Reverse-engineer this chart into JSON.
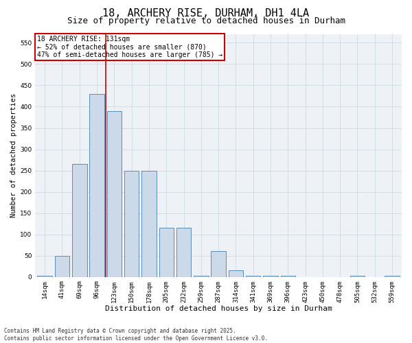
{
  "title": "18, ARCHERY RISE, DURHAM, DH1 4LA",
  "subtitle": "Size of property relative to detached houses in Durham",
  "xlabel": "Distribution of detached houses by size in Durham",
  "ylabel": "Number of detached properties",
  "bar_labels": [
    "14sqm",
    "41sqm",
    "69sqm",
    "96sqm",
    "123sqm",
    "150sqm",
    "178sqm",
    "205sqm",
    "232sqm",
    "259sqm",
    "287sqm",
    "314sqm",
    "341sqm",
    "369sqm",
    "396sqm",
    "423sqm",
    "450sqm",
    "478sqm",
    "505sqm",
    "532sqm",
    "559sqm"
  ],
  "bar_values": [
    2,
    50,
    265,
    430,
    390,
    250,
    250,
    115,
    115,
    2,
    60,
    15,
    2,
    2,
    2,
    0,
    0,
    0,
    2,
    0,
    2
  ],
  "bar_color": "#ccd9e8",
  "bar_edge_color": "#5b8db8",
  "ylim": [
    0,
    570
  ],
  "yticks": [
    0,
    50,
    100,
    150,
    200,
    250,
    300,
    350,
    400,
    450,
    500,
    550
  ],
  "red_line_index": 4,
  "annotation_text": "18 ARCHERY RISE: 131sqm\n← 52% of detached houses are smaller (870)\n47% of semi-detached houses are larger (785) →",
  "annotation_box_color": "#ffffff",
  "annotation_edge_color": "#cc0000",
  "red_line_color": "#cc0000",
  "grid_color": "#c8d4e0",
  "bg_color": "#eef2f7",
  "footer": "Contains HM Land Registry data © Crown copyright and database right 2025.\nContains public sector information licensed under the Open Government Licence v3.0.",
  "title_fontsize": 11,
  "subtitle_fontsize": 9,
  "tick_fontsize": 6.5,
  "xlabel_fontsize": 8,
  "ylabel_fontsize": 7.5,
  "annotation_fontsize": 7,
  "footer_fontsize": 5.5
}
